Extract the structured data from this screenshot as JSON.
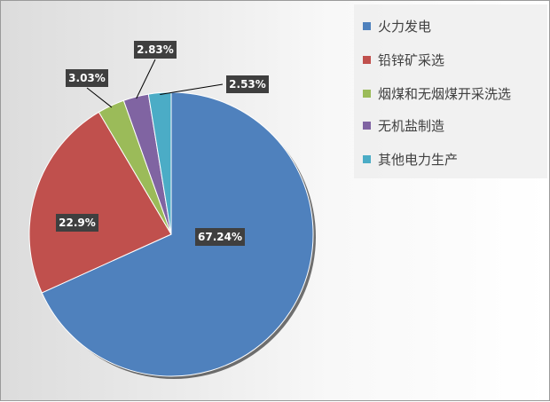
{
  "chart_data": {
    "type": "pie",
    "title": "",
    "legend_position": "top-right",
    "categories": [
      "火力发电",
      "铅锌矿采选",
      "烟煤和无烟煤开采洗选",
      "无机盐制造",
      "其他电力生产"
    ],
    "values": [
      67.24,
      22.9,
      3.03,
      2.83,
      2.53
    ],
    "data_labels": [
      "67.24%",
      "22.9%",
      "3.03%",
      "2.83%",
      "2.53%"
    ],
    "colors": [
      "#4f81bd",
      "#c0504d",
      "#9bbb59",
      "#8064a2",
      "#4bacc6"
    ]
  }
}
